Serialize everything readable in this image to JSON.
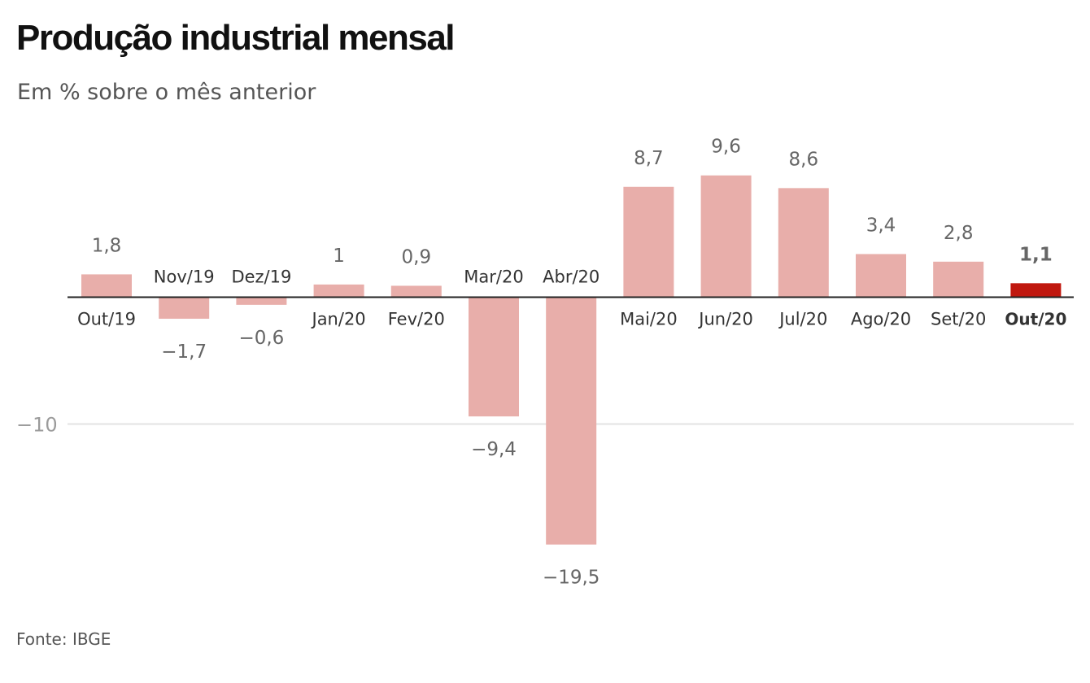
{
  "header": {
    "title": "Produção industrial mensal",
    "subtitle": "Em % sobre o mês anterior"
  },
  "footer": {
    "source": "Fonte: IBGE"
  },
  "colors": {
    "bar": "#e8aeaa",
    "highlight_bar": "#c0180f",
    "value_label": "#666666",
    "category_label": "#333333",
    "gridline": "#e3e3e3",
    "baseline": "#222222",
    "tick_label": "#9b9b9b"
  },
  "chart_data": {
    "type": "bar",
    "title": "Produção industrial mensal",
    "subtitle": "Em % sobre o mês anterior",
    "categories": [
      "Out/19",
      "Nov/19",
      "Dez/19",
      "Jan/20",
      "Fev/20",
      "Mar/20",
      "Abr/20",
      "Mai/20",
      "Jun/20",
      "Jul/20",
      "Ago/20",
      "Set/20",
      "Out/20"
    ],
    "values": [
      1.8,
      -1.7,
      -0.6,
      1,
      0.9,
      -9.4,
      -19.5,
      8.7,
      9.6,
      8.6,
      3.4,
      2.8,
      1.1
    ],
    "value_labels": [
      "1,8",
      "−1,7",
      "−0,6",
      "1",
      "0,9",
      "−9,4",
      "−19,5",
      "8,7",
      "9,6",
      "8,6",
      "3,4",
      "2,8",
      "1,1"
    ],
    "highlight_category": "Out/20",
    "yticks": [
      -10
    ],
    "ytick_labels": [
      "−10"
    ],
    "ylim": [
      -20,
      10
    ],
    "grid": true,
    "legend": "none",
    "xlabel": "",
    "ylabel": ""
  }
}
